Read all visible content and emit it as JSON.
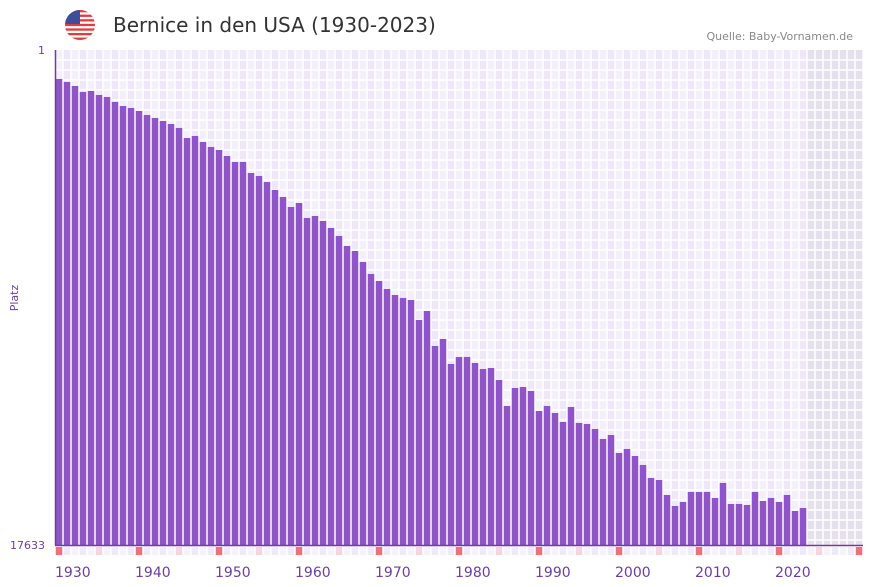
{
  "header": {
    "title": "Bernice in den USA (1930-2023)",
    "source": "Quelle: Baby-Vornamen.de",
    "flag_icon": "us-flag-icon"
  },
  "colors": {
    "bar": "#8e55c8",
    "axis": "#6a3fa0",
    "decade_marker": "#e8737a",
    "half_decade_marker": "#f6d6de",
    "future_shade": "#e4e0ec"
  },
  "chart_data": {
    "type": "bar",
    "title": "Bernice in den USA (1930-2023)",
    "xlabel": "",
    "ylabel": "Platz",
    "y_reversed": true,
    "ylim": [
      1,
      17633
    ],
    "y_tick_labels": [
      "1",
      "17633"
    ],
    "x_range": [
      1930,
      2030
    ],
    "x_tick_labels": [
      "1930",
      "1940",
      "1950",
      "1960",
      "1970",
      "1980",
      "1990",
      "2000",
      "2010",
      "2020"
    ],
    "x_start": 1930,
    "values": [
      1033,
      1140,
      1282,
      1496,
      1460,
      1603,
      1674,
      1852,
      1995,
      2066,
      2173,
      2315,
      2422,
      2529,
      2636,
      2778,
      3135,
      3063,
      3277,
      3455,
      3562,
      3776,
      3990,
      3990,
      4382,
      4488,
      4702,
      4987,
      5237,
      5593,
      5450,
      5984,
      5913,
      6091,
      6340,
      6625,
      6982,
      7160,
      7552,
      7979,
      8229,
      8514,
      8727,
      8834,
      8906,
      9618,
      9297,
      10544,
      10294,
      11185,
      10935,
      10935,
      11149,
      11363,
      11327,
      11755,
      12681,
      12040,
      12004,
      12146,
      12859,
      12681,
      12930,
      13251,
      12717,
      13287,
      13322,
      13500,
      13856,
      13714,
      14355,
      14212,
      14462,
      14782,
      15245,
      15316,
      15851,
      16243,
      16100,
      15744,
      15744,
      15744,
      15958,
      15423,
      16172,
      16172,
      16207,
      15744,
      16065,
      15958,
      16100,
      15851,
      16421,
      16314
    ],
    "grid": true,
    "legend": "none"
  }
}
